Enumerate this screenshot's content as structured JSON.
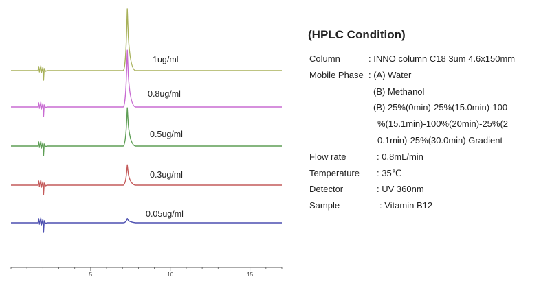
{
  "chart_data": {
    "type": "line",
    "x_range": [
      0,
      17
    ],
    "xticks": [
      5,
      10,
      15
    ],
    "grid": false,
    "legend": "none",
    "series": [
      {
        "name": "1ug/ml",
        "color": "#a8b15a",
        "peak_height": 1.0
      },
      {
        "name": "0.8ug/ml",
        "color": "#c86bd2",
        "peak_height": 0.92
      },
      {
        "name": "0.5ug/ml",
        "color": "#5e9e55",
        "peak_height": 0.62
      },
      {
        "name": "0.3ug/ml",
        "color": "#c45a5a",
        "peak_height": 0.33
      },
      {
        "name": "0.05ug/ml",
        "color": "#4c4fb0",
        "peak_height": 0.07
      }
    ],
    "peak_x": 7.3,
    "solvent_front_x": 2.0
  },
  "conditions": {
    "title": "(HPLC Condition)",
    "rows": [
      {
        "label": "Column",
        "value": ": INNO column C18 3um 4.6x150mm"
      },
      {
        "label": "Mobile Phase",
        "value": ": (A) Water"
      },
      {
        "label": "",
        "value": "(B) Methanol"
      },
      {
        "label": "",
        "value": "(B) 25%(0min)-25%(15.0min)-100"
      },
      {
        "label": "",
        "value": "%(15.1min)-100%(20min)-25%(2"
      },
      {
        "label": "",
        "value": "0.1min)-25%(30.0min) Gradient"
      },
      {
        "label": "Flow rate",
        "value": ": 0.8mL/min"
      },
      {
        "label": "Temperature",
        "value": ":   35℃"
      },
      {
        "label": "Detector",
        "value": ": UV 360nm"
      },
      {
        "label": "Sample",
        "value": ": Vitamin B12"
      }
    ]
  }
}
